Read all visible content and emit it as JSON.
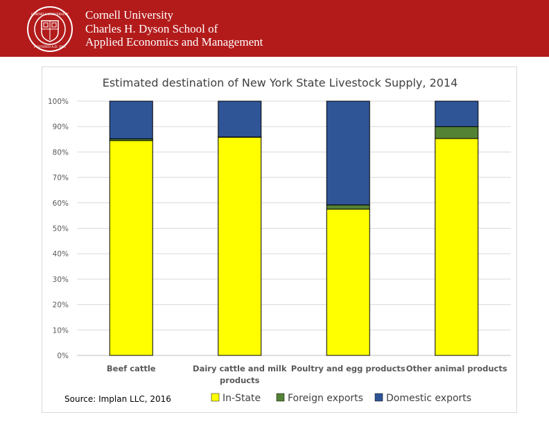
{
  "header": {
    "line1": "Cornell University",
    "line2": "Charles H. Dyson School of",
    "line3": "Applied Economics and Management",
    "seal_text": "CORNELL UNIVERSITY FOUNDED A.D. 1865"
  },
  "colors": {
    "brand": "#b31b1b",
    "in_state": "#ffff00",
    "foreign": "#548235",
    "domestic": "#2f5597"
  },
  "source": "Source: Implan LLC, 2016",
  "chart_data": {
    "type": "bar",
    "stacked": true,
    "title": "Estimated destination of New York State Livestock Supply, 2014",
    "categories": [
      [
        "Beef cattle"
      ],
      [
        "Dairy cattle and milk",
        "products"
      ],
      [
        "Poultry and egg products"
      ],
      [
        "Other animal products"
      ]
    ],
    "series": [
      {
        "name": "In-State",
        "color": "#ffff00",
        "values": [
          84.5,
          85.8,
          57.5,
          85.3
        ]
      },
      {
        "name": "Foreign exports",
        "color": "#548235",
        "values": [
          0.7,
          0.1,
          1.7,
          4.7
        ]
      },
      {
        "name": "Domestic exports",
        "color": "#2f5597",
        "values": [
          14.8,
          14.1,
          40.8,
          10.0
        ]
      }
    ],
    "ylim": [
      0,
      100
    ],
    "yticks": [
      "0%",
      "10%",
      "20%",
      "30%",
      "40%",
      "50%",
      "60%",
      "70%",
      "80%",
      "90%",
      "100%"
    ],
    "xlabel": "",
    "ylabel": "",
    "grid": true,
    "legend": "bottom"
  }
}
